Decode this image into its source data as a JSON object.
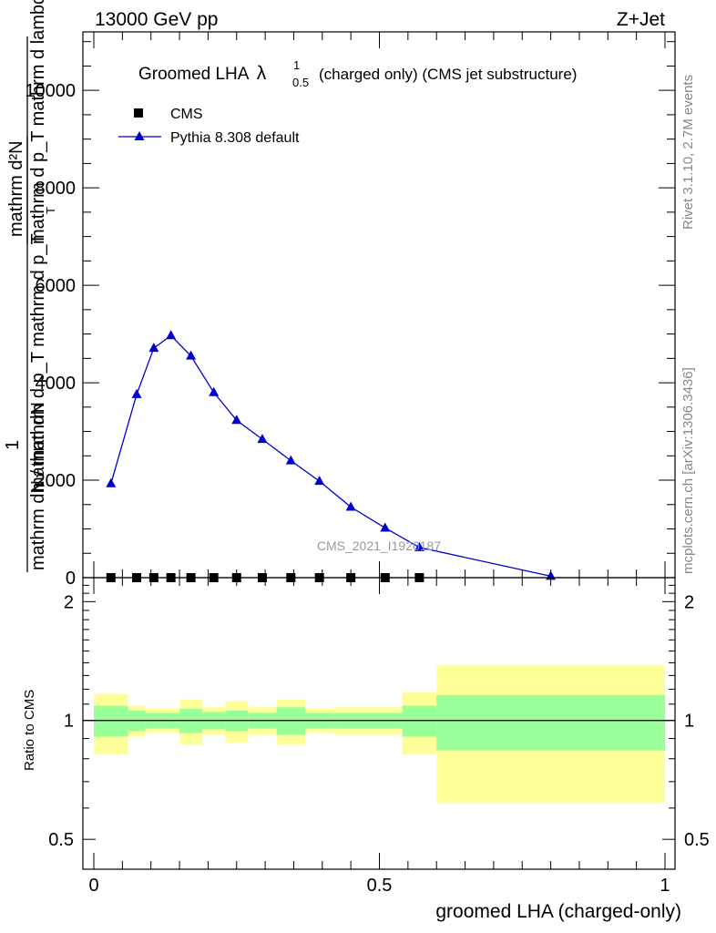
{
  "header": {
    "left_text": "13000 GeV pp",
    "right_text": "Z+Jet"
  },
  "plot_title": {
    "main": "Groomed LHA",
    "lambda": "λ",
    "sup": "1",
    "sub": "0.5",
    "rest": " (charged only) (CMS jet substructure)"
  },
  "side_text": {
    "rivet": "Rivet 3.1.10,  2.7M events",
    "mcplots": "mcplots.cern.ch [arXiv:1306.3436]"
  },
  "watermark": "CMS_2021_I1920187",
  "ylabel_main": {
    "top_numerator": "mathrm d²N",
    "top_denominator": "mathrm d p_T mathrm d lambda",
    "one": "1",
    "bottom": "mathrm dN / mathrm d p_T mathrm d p_T",
    "bottom2": "mathrm dN",
    "sub_T": "T"
  },
  "ylabel_ratio": "Ratio to CMS",
  "xlabel": "groomed LHA (charged-only)",
  "legend": [
    {
      "label": "CMS",
      "marker": "square",
      "color": "#000000"
    },
    {
      "label": "Pythia 8.308 default",
      "marker": "triangle",
      "color": "#0000cc"
    }
  ],
  "chart_data": [
    {
      "type": "line",
      "panel": "main",
      "xlim": [
        0,
        1
      ],
      "ylim": [
        0,
        11200
      ],
      "yticks": [
        0,
        2000,
        4000,
        6000,
        8000,
        10000
      ],
      "ytick_labels": [
        "0",
        "2000",
        "4000",
        "6000",
        "8000",
        "10000"
      ],
      "series": [
        {
          "name": "CMS",
          "color": "#000000",
          "marker": "square",
          "x": [
            0.03,
            0.075,
            0.105,
            0.135,
            0.17,
            0.21,
            0.25,
            0.295,
            0.345,
            0.395,
            0.45,
            0.51,
            0.57
          ],
          "y": [
            0,
            0,
            0,
            0,
            0,
            0,
            0,
            0,
            0,
            0,
            0,
            0,
            0
          ]
        },
        {
          "name": "Pythia 8.308 default",
          "color": "#0000cc",
          "marker": "triangle",
          "x": [
            0.03,
            0.075,
            0.105,
            0.135,
            0.17,
            0.21,
            0.25,
            0.295,
            0.345,
            0.395,
            0.45,
            0.51,
            0.57,
            0.8
          ],
          "y": [
            1930,
            3760,
            4710,
            4970,
            4550,
            3800,
            3230,
            2840,
            2400,
            1980,
            1450,
            1020,
            620,
            30
          ]
        }
      ]
    },
    {
      "type": "area",
      "panel": "ratio",
      "xlim": [
        0,
        1
      ],
      "ylim": [
        0.42,
        2.3
      ],
      "yticks": [
        0.5,
        1,
        2
      ],
      "ytick_labels": [
        "0.5",
        "1",
        "2"
      ],
      "xticks": [
        0,
        0.5,
        1
      ],
      "xtick_labels": [
        "0",
        "0.5",
        "1"
      ],
      "reference_line": 1,
      "bins": [
        {
          "x0": 0.0,
          "x1": 0.06,
          "inner": [
            0.91,
            1.09
          ],
          "outer": [
            0.82,
            1.17
          ]
        },
        {
          "x0": 0.06,
          "x1": 0.09,
          "inner": [
            0.94,
            1.06
          ],
          "outer": [
            0.91,
            1.09
          ]
        },
        {
          "x0": 0.09,
          "x1": 0.12,
          "inner": [
            0.955,
            1.045
          ],
          "outer": [
            0.93,
            1.07
          ]
        },
        {
          "x0": 0.12,
          "x1": 0.15,
          "inner": [
            0.955,
            1.045
          ],
          "outer": [
            0.93,
            1.07
          ]
        },
        {
          "x0": 0.15,
          "x1": 0.19,
          "inner": [
            0.93,
            1.07
          ],
          "outer": [
            0.87,
            1.13
          ]
        },
        {
          "x0": 0.19,
          "x1": 0.23,
          "inner": [
            0.95,
            1.05
          ],
          "outer": [
            0.92,
            1.08
          ]
        },
        {
          "x0": 0.23,
          "x1": 0.27,
          "inner": [
            0.94,
            1.06
          ],
          "outer": [
            0.88,
            1.12
          ]
        },
        {
          "x0": 0.27,
          "x1": 0.32,
          "inner": [
            0.955,
            1.045
          ],
          "outer": [
            0.92,
            1.08
          ]
        },
        {
          "x0": 0.32,
          "x1": 0.37,
          "inner": [
            0.92,
            1.08
          ],
          "outer": [
            0.87,
            1.13
          ]
        },
        {
          "x0": 0.37,
          "x1": 0.42,
          "inner": [
            0.955,
            1.045
          ],
          "outer": [
            0.93,
            1.07
          ]
        },
        {
          "x0": 0.42,
          "x1": 0.48,
          "inner": [
            0.955,
            1.045
          ],
          "outer": [
            0.92,
            1.08
          ]
        },
        {
          "x0": 0.48,
          "x1": 0.54,
          "inner": [
            0.955,
            1.045
          ],
          "outer": [
            0.92,
            1.08
          ]
        },
        {
          "x0": 0.54,
          "x1": 0.6,
          "inner": [
            0.91,
            1.09
          ],
          "outer": [
            0.82,
            1.18
          ]
        },
        {
          "x0": 0.6,
          "x1": 1.0,
          "inner": [
            0.84,
            1.16
          ],
          "outer": [
            0.62,
            1.38
          ]
        }
      ]
    }
  ],
  "colors": {
    "band_outer": "#ffff99",
    "band_inner": "#99ff99",
    "pythia": "#0000cc",
    "cms": "#000000",
    "side_text": "#888888"
  }
}
